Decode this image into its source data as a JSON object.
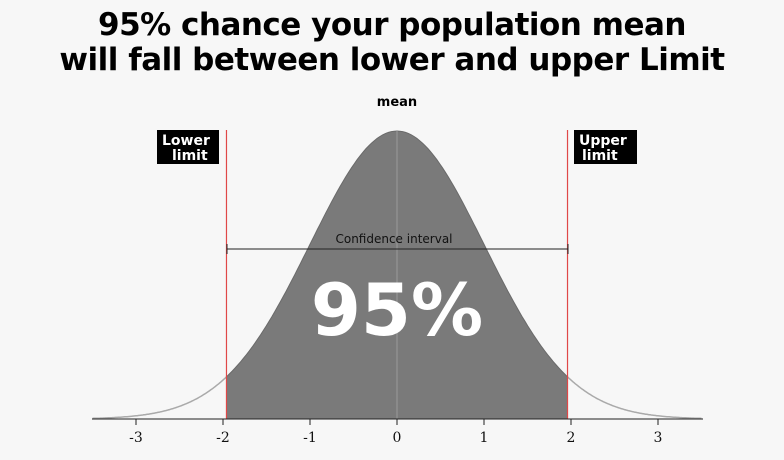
{
  "title": {
    "line1": "95% chance your population mean",
    "line2": "will fall between lower and upper Limit"
  },
  "labels": {
    "mean": "mean",
    "lower_line1": "Lower",
    "lower_line2": "limit",
    "upper_line1": "Upper",
    "upper_line2": "limit",
    "interval": "Confidence interval",
    "percent": "95%"
  },
  "chart_data": {
    "type": "area",
    "distribution": "standard normal",
    "xlim": [
      -3.5,
      3.5
    ],
    "ticks": [
      -3,
      -2,
      -1,
      0,
      1,
      2,
      3
    ],
    "tick_labels": [
      "-3",
      "-2",
      "-1",
      "0",
      "1",
      "2",
      "3"
    ],
    "lower_limit": -1.96,
    "upper_limit": 1.96,
    "mean": 0,
    "shaded_fraction": 0.95
  },
  "colors": {
    "fill": "#7a7a7a",
    "curve": "#aaaaaa",
    "limit_line": "#e04848",
    "background": "#f7f7f7"
  }
}
